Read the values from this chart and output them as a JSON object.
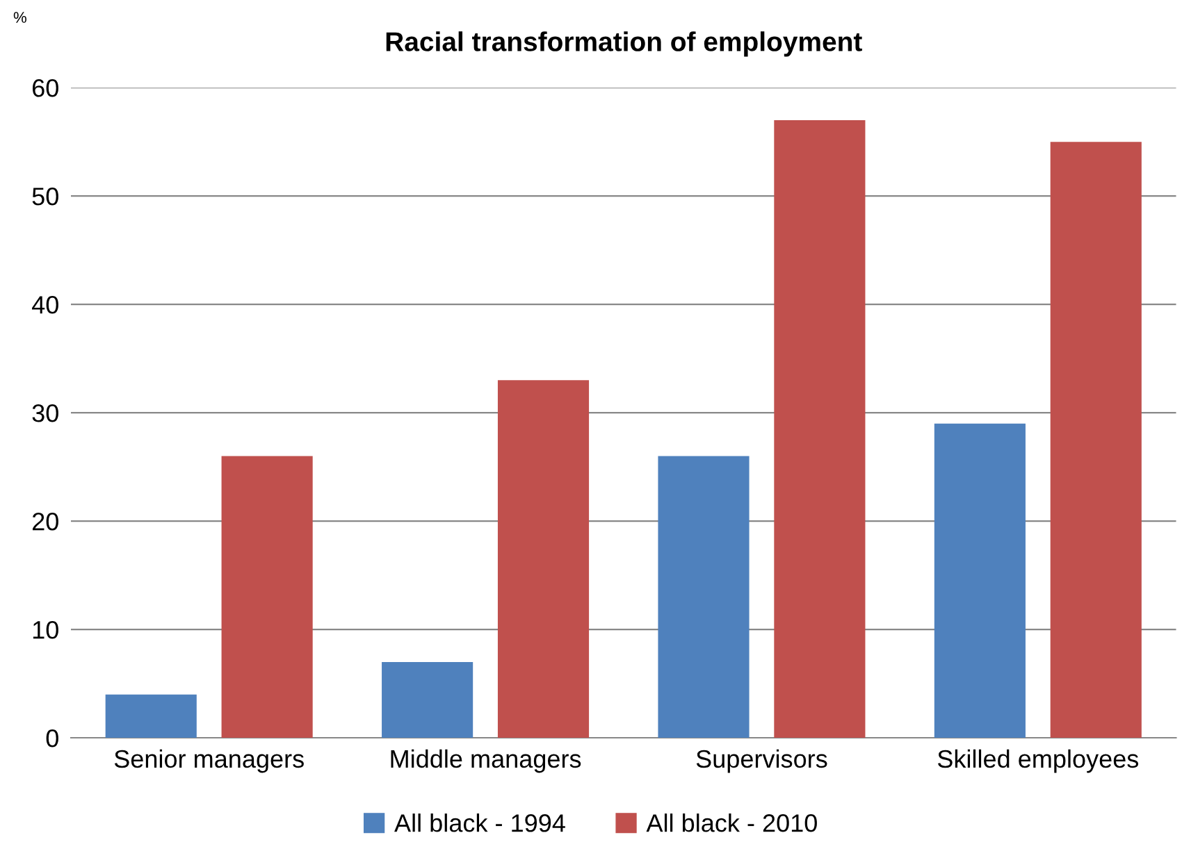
{
  "chart_data": {
    "type": "bar",
    "title": "Racial transformation of employment",
    "ylabel": "%",
    "categories": [
      "Senior managers",
      "Middle managers",
      "Supervisors",
      "Skilled employees"
    ],
    "series": [
      {
        "name": "All black - 1994",
        "color": "#4f81bd",
        "values": [
          4,
          7,
          26,
          29
        ]
      },
      {
        "name": "All black - 2010",
        "color": "#c0504d",
        "values": [
          26,
          33,
          57,
          55
        ]
      }
    ],
    "ylim": [
      0,
      60
    ],
    "yticks": [
      0,
      10,
      20,
      30,
      40,
      50,
      60
    ],
    "grid": "y",
    "legend": "bottom"
  }
}
